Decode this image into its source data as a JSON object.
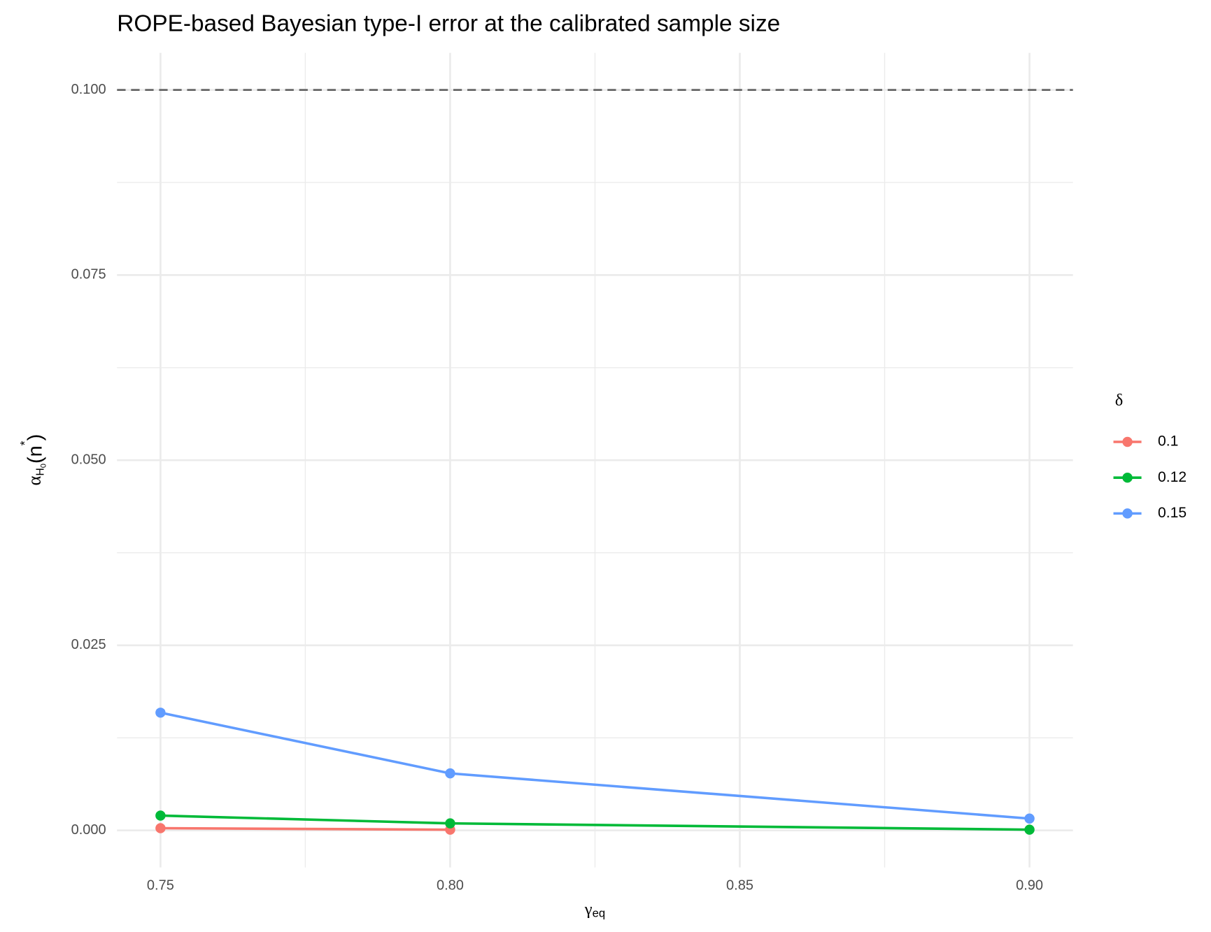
{
  "chart_data": {
    "type": "line",
    "title": "ROPE-based Bayesian type-I error at the calibrated sample size",
    "x_label": {
      "main": "γ",
      "sub": "eq"
    },
    "y_label": {
      "main": "α",
      "sub": "H",
      "subsub": "0",
      "open": "(n",
      "sup": "*",
      "close": ")"
    },
    "legend_title": "δ",
    "legend_position": "right",
    "grid": true,
    "x": [
      0.75,
      0.8,
      0.9
    ],
    "series": [
      {
        "name": "0.1",
        "color": "#F8766D",
        "values": [
          0.0003,
          0.0001,
          null
        ]
      },
      {
        "name": "0.12",
        "color": "#00BA38",
        "values": [
          0.002,
          0.00095,
          0.0001
        ]
      },
      {
        "name": "0.15",
        "color": "#619CFF",
        "values": [
          0.0159,
          0.0077,
          0.0016
        ]
      }
    ],
    "hline": 0.1,
    "xlim": [
      0.7425,
      0.9075
    ],
    "ylim": [
      -0.005,
      0.105
    ],
    "xticks": [
      {
        "value": 0.75,
        "label": "0.75"
      },
      {
        "value": 0.8,
        "label": "0.80"
      },
      {
        "value": 0.85,
        "label": "0.85"
      },
      {
        "value": 0.9,
        "label": "0.90"
      }
    ],
    "yticks": [
      {
        "value": 0,
        "label": "0.000"
      },
      {
        "value": 0.025,
        "label": "0.025"
      },
      {
        "value": 0.05,
        "label": "0.050"
      },
      {
        "value": 0.075,
        "label": "0.075"
      },
      {
        "value": 0.1,
        "label": "0.100"
      }
    ]
  }
}
